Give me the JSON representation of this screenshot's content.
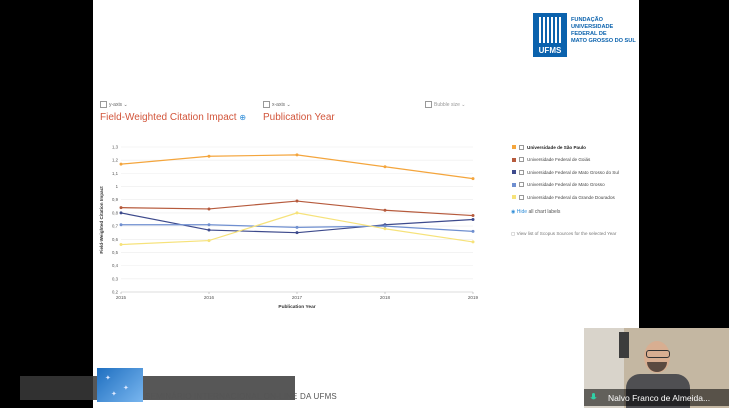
{
  "logo": {
    "abbr": "UFMS",
    "text": "FUNDAÇÃO\nUNIVERSIDADE\nFEDERAL DE\nMATO GROSSO DO SUL"
  },
  "controls": {
    "y_axis": "y-axis",
    "x_axis": "x-axis",
    "bubble": "Bubble size"
  },
  "chart_titles": {
    "y_metric": "Field-Weighted Citation Impact",
    "x_metric": "Publication Year"
  },
  "chart_data": {
    "type": "line",
    "x": [
      2015,
      2016,
      2017,
      2018,
      2019
    ],
    "xlabel": "Publication Year",
    "ylabel": "Field-Weighted Citation Impact",
    "ylim": [
      0.2,
      1.3
    ],
    "yticks": [
      "0,2",
      "0,3",
      "0,4",
      "0,5",
      "0,6",
      "0,7",
      "0,8",
      "0,9",
      "1",
      "1,1",
      "1,2",
      "1,3"
    ],
    "grid": true,
    "legend_position": "right",
    "series": [
      {
        "name": "Universidade de São Paulo",
        "color": "#f4a53c",
        "values": [
          1.17,
          1.23,
          1.24,
          1.15,
          1.06
        ]
      },
      {
        "name": "Universidade Federal de Goiás",
        "color": "#b65a3c",
        "values": [
          0.84,
          0.83,
          0.89,
          0.82,
          0.78
        ]
      },
      {
        "name": "Universidade Federal de Mato Grosso do Sul",
        "color": "#3d4a8c",
        "values": [
          0.8,
          0.67,
          0.65,
          0.71,
          0.75
        ]
      },
      {
        "name": "Universidade Federal de Mato Grosso",
        "color": "#6f8fd0",
        "values": [
          0.71,
          0.71,
          0.69,
          0.7,
          0.66
        ]
      },
      {
        "name": "Universidade Federal da Grande Dourados",
        "color": "#f6e27a",
        "values": [
          0.56,
          0.59,
          0.8,
          0.68,
          0.58
        ]
      }
    ]
  },
  "legend_extra": {
    "hide_link": "Hide",
    "hide_rest": " all chart labels",
    "scopus": "View list of Scopus Sources for the selected Year"
  },
  "footer": {
    "event": "SEMINÁRIO INTERNACIONAL ON-LINE DA UFMS"
  },
  "video": {
    "name": "Nalvo Franco de Almeida..."
  },
  "icons": {
    "legend": "institution-icon",
    "mic": "microphone-icon"
  }
}
